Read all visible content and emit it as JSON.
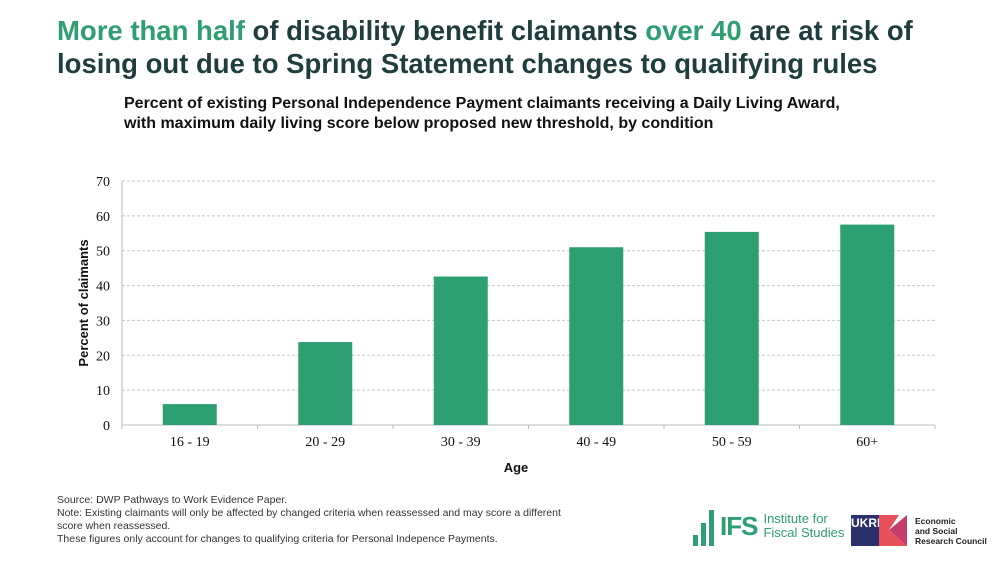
{
  "headline": {
    "parts": [
      {
        "text": "More than half",
        "highlight": true
      },
      {
        "text": " of disability benefit claimants ",
        "highlight": false
      },
      {
        "text": "over 40",
        "highlight": true
      },
      {
        "text": " are at risk of losing out due to Spring Statement changes to qualifying rules",
        "highlight": false
      }
    ]
  },
  "colors": {
    "bar": "#2e9e73",
    "highlight": "#2e9e73",
    "headline": "#1f3d3d"
  },
  "chart_data": {
    "type": "bar",
    "title": "Percent of existing Personal Independence Payment claimants receiving a Daily Living Award, with maximum daily living score below proposed new threshold, by condition",
    "xlabel": "Age",
    "ylabel": "Percent of claimants",
    "categories": [
      "16 - 19",
      "20 - 29",
      "30 - 39",
      "40 - 49",
      "50 - 59",
      "60+"
    ],
    "values": [
      6.0,
      23.8,
      42.6,
      51.0,
      55.4,
      57.5
    ],
    "ylim": [
      0,
      70
    ],
    "yticks": [
      0,
      10,
      20,
      30,
      40,
      50,
      60,
      70
    ],
    "grid": true
  },
  "notes": [
    "Source: DWP Pathways to Work Evidence Paper.",
    "Note: Existing claimants will only be affected by changed criteria when reassessed and may score a different score when reassessed.",
    "These figures only account for changes to qualifying criteria for Personal Indepence Payments."
  ],
  "logos": {
    "ifs": {
      "mark": "IFS",
      "name_line1": "Institute for",
      "name_line2": "Fiscal Studies"
    },
    "esrc": {
      "mark": "UKRI",
      "line1": "Economic",
      "line2": "and Social",
      "line3": "Research Council"
    }
  }
}
